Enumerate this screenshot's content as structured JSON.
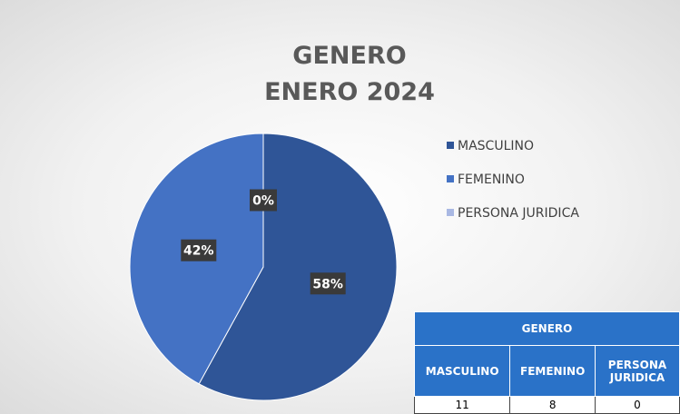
{
  "chart_data": {
    "type": "pie",
    "title": "GENERO",
    "subtitle": "ENERO 2024",
    "categories": [
      "MASCULINO",
      "FEMENINO",
      "PERSONA JURIDICA"
    ],
    "values": [
      58,
      42,
      0
    ],
    "value_labels": [
      "58%",
      "42%",
      "0%"
    ],
    "colors": [
      "#2f5597",
      "#4472c4",
      "#a9b8e3"
    ],
    "legend": "right"
  },
  "table": {
    "title": "GENERO",
    "columns": [
      "MASCULINO",
      "FEMENINO",
      "PERSONA JURIDICA"
    ],
    "rows": [
      [
        11,
        8,
        0
      ]
    ]
  }
}
